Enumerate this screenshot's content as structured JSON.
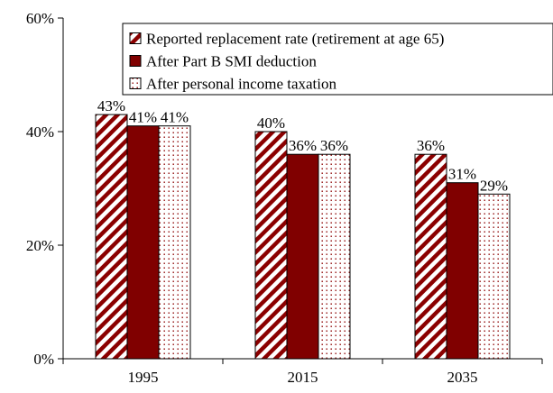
{
  "chart_data": {
    "type": "bar",
    "categories": [
      "1995",
      "2015",
      "2035"
    ],
    "series": [
      {
        "name": "Reported replacement rate (retirement at age 65)",
        "values": [
          43,
          40,
          36
        ],
        "labels": [
          "43%",
          "40%",
          "36%"
        ],
        "pattern": "diagonal-stripes",
        "color": "#8b0000"
      },
      {
        "name": "After Part B SMI deduction",
        "values": [
          41,
          36,
          31
        ],
        "labels": [
          "41%",
          "36%",
          "31%"
        ],
        "pattern": "solid",
        "color": "#800000"
      },
      {
        "name": "After personal income taxation",
        "values": [
          41,
          36,
          29
        ],
        "labels": [
          "41%",
          "36%",
          "29%"
        ],
        "pattern": "dots",
        "color": "#8b0000"
      }
    ],
    "y_ticks": [
      {
        "value": 0,
        "label": "0%"
      },
      {
        "value": 20,
        "label": "20%"
      },
      {
        "value": 40,
        "label": "40%"
      },
      {
        "value": 60,
        "label": "60%"
      }
    ],
    "ylim": [
      0,
      60
    ],
    "title": "",
    "xlabel": "",
    "ylabel": "",
    "grid": false,
    "legend_position": "top-right"
  }
}
